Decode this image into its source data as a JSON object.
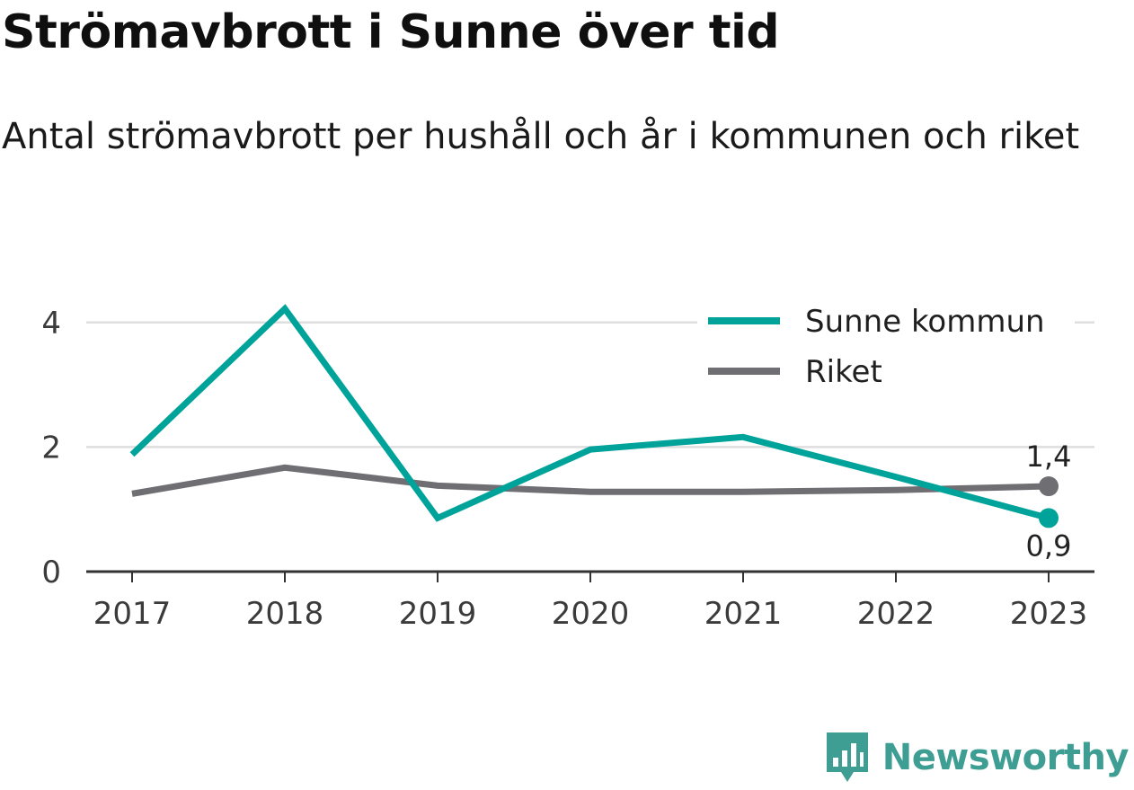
{
  "title": "Strömavbrott i Sunne över tid",
  "subtitle": "Antal strömavbrott per hushåll och år i kommunen och riket",
  "brand": {
    "name": "Newsworthy",
    "color": "#3f9e93",
    "icon": "bar-chart-speech-bubble-icon"
  },
  "chart_data": {
    "type": "line",
    "categories": [
      "2017",
      "2018",
      "2019",
      "2020",
      "2021",
      "2022",
      "2023"
    ],
    "series": [
      {
        "name": "Sunne kommun",
        "color": "#00a39a",
        "values": [
          1.88,
          4.22,
          0.86,
          1.96,
          2.16,
          1.52,
          0.86
        ]
      },
      {
        "name": "Riket",
        "color": "#6e6e73",
        "values": [
          1.25,
          1.67,
          1.38,
          1.28,
          1.28,
          1.31,
          1.37
        ]
      }
    ],
    "ylim": [
      0,
      4.4
    ],
    "yticks": [
      "0",
      "2",
      "4"
    ],
    "grid": true,
    "legend": "top-right",
    "end_labels": {
      "Sunne kommun": "0,9",
      "Riket": "1,4"
    },
    "xlabel": "",
    "ylabel": ""
  }
}
